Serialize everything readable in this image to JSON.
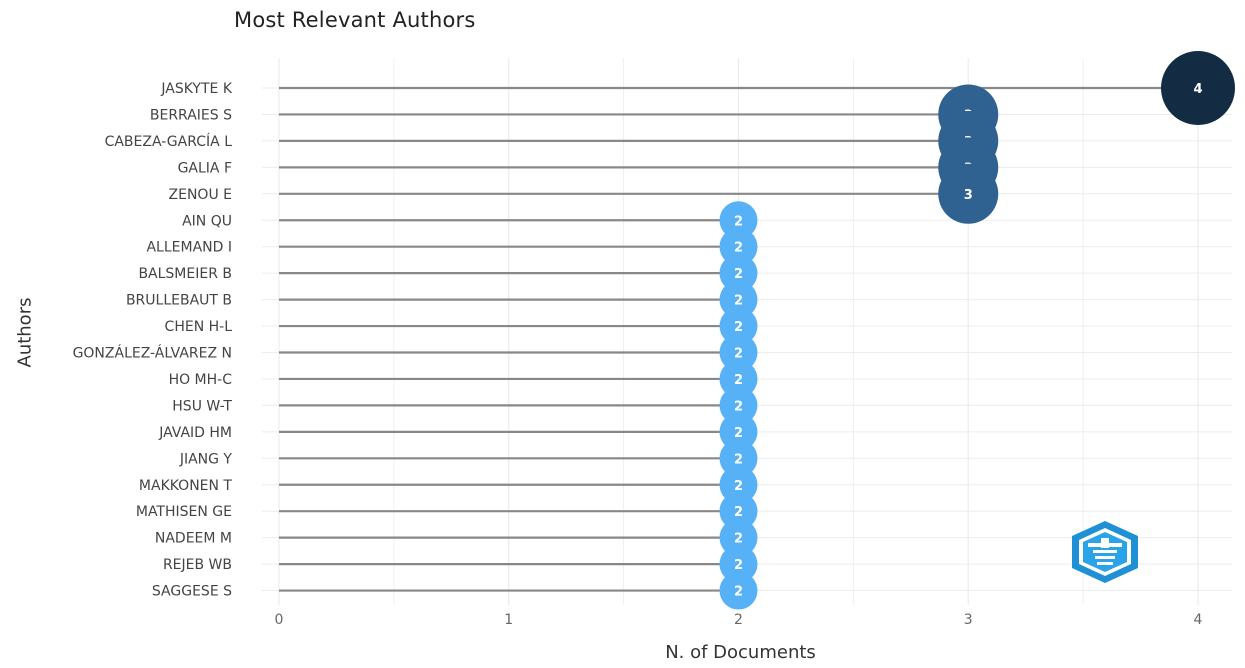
{
  "chart_data": {
    "type": "lollipop",
    "title": "Most Relevant Authors",
    "xlabel": "N. of Documents",
    "ylabel": "Authors",
    "xlim": [
      0,
      4
    ],
    "xticks": [
      "0",
      "1",
      "2",
      "3",
      "4"
    ],
    "grid": true,
    "categories": [
      "JASKYTE K",
      "BERRAIES S",
      "CABEZA-GARCÍA L",
      "GALIA F",
      "ZENOU E",
      "AIN QU",
      "ALLEMAND I",
      "BALSMEIER B",
      "BRULLEBAUT B",
      "CHEN H-L",
      "GONZÁLEZ-ÁLVAREZ N",
      "HO MH-C",
      "HSU W-T",
      "JAVAID HM",
      "JIANG Y",
      "MAKKONEN T",
      "MATHISEN GE",
      "NADEEM M",
      "REJEB WB",
      "SAGGESE S"
    ],
    "values": [
      4,
      3,
      3,
      3,
      3,
      2,
      2,
      2,
      2,
      2,
      2,
      2,
      2,
      2,
      2,
      2,
      2,
      2,
      2,
      2
    ],
    "colors": {
      "4": "#132b43",
      "3": "#2f6290",
      "2": "#56b1f7"
    },
    "line_color": "#888888",
    "grid_color": "#ececec"
  },
  "logo": {
    "name": "bibliometrix-logo-icon"
  }
}
